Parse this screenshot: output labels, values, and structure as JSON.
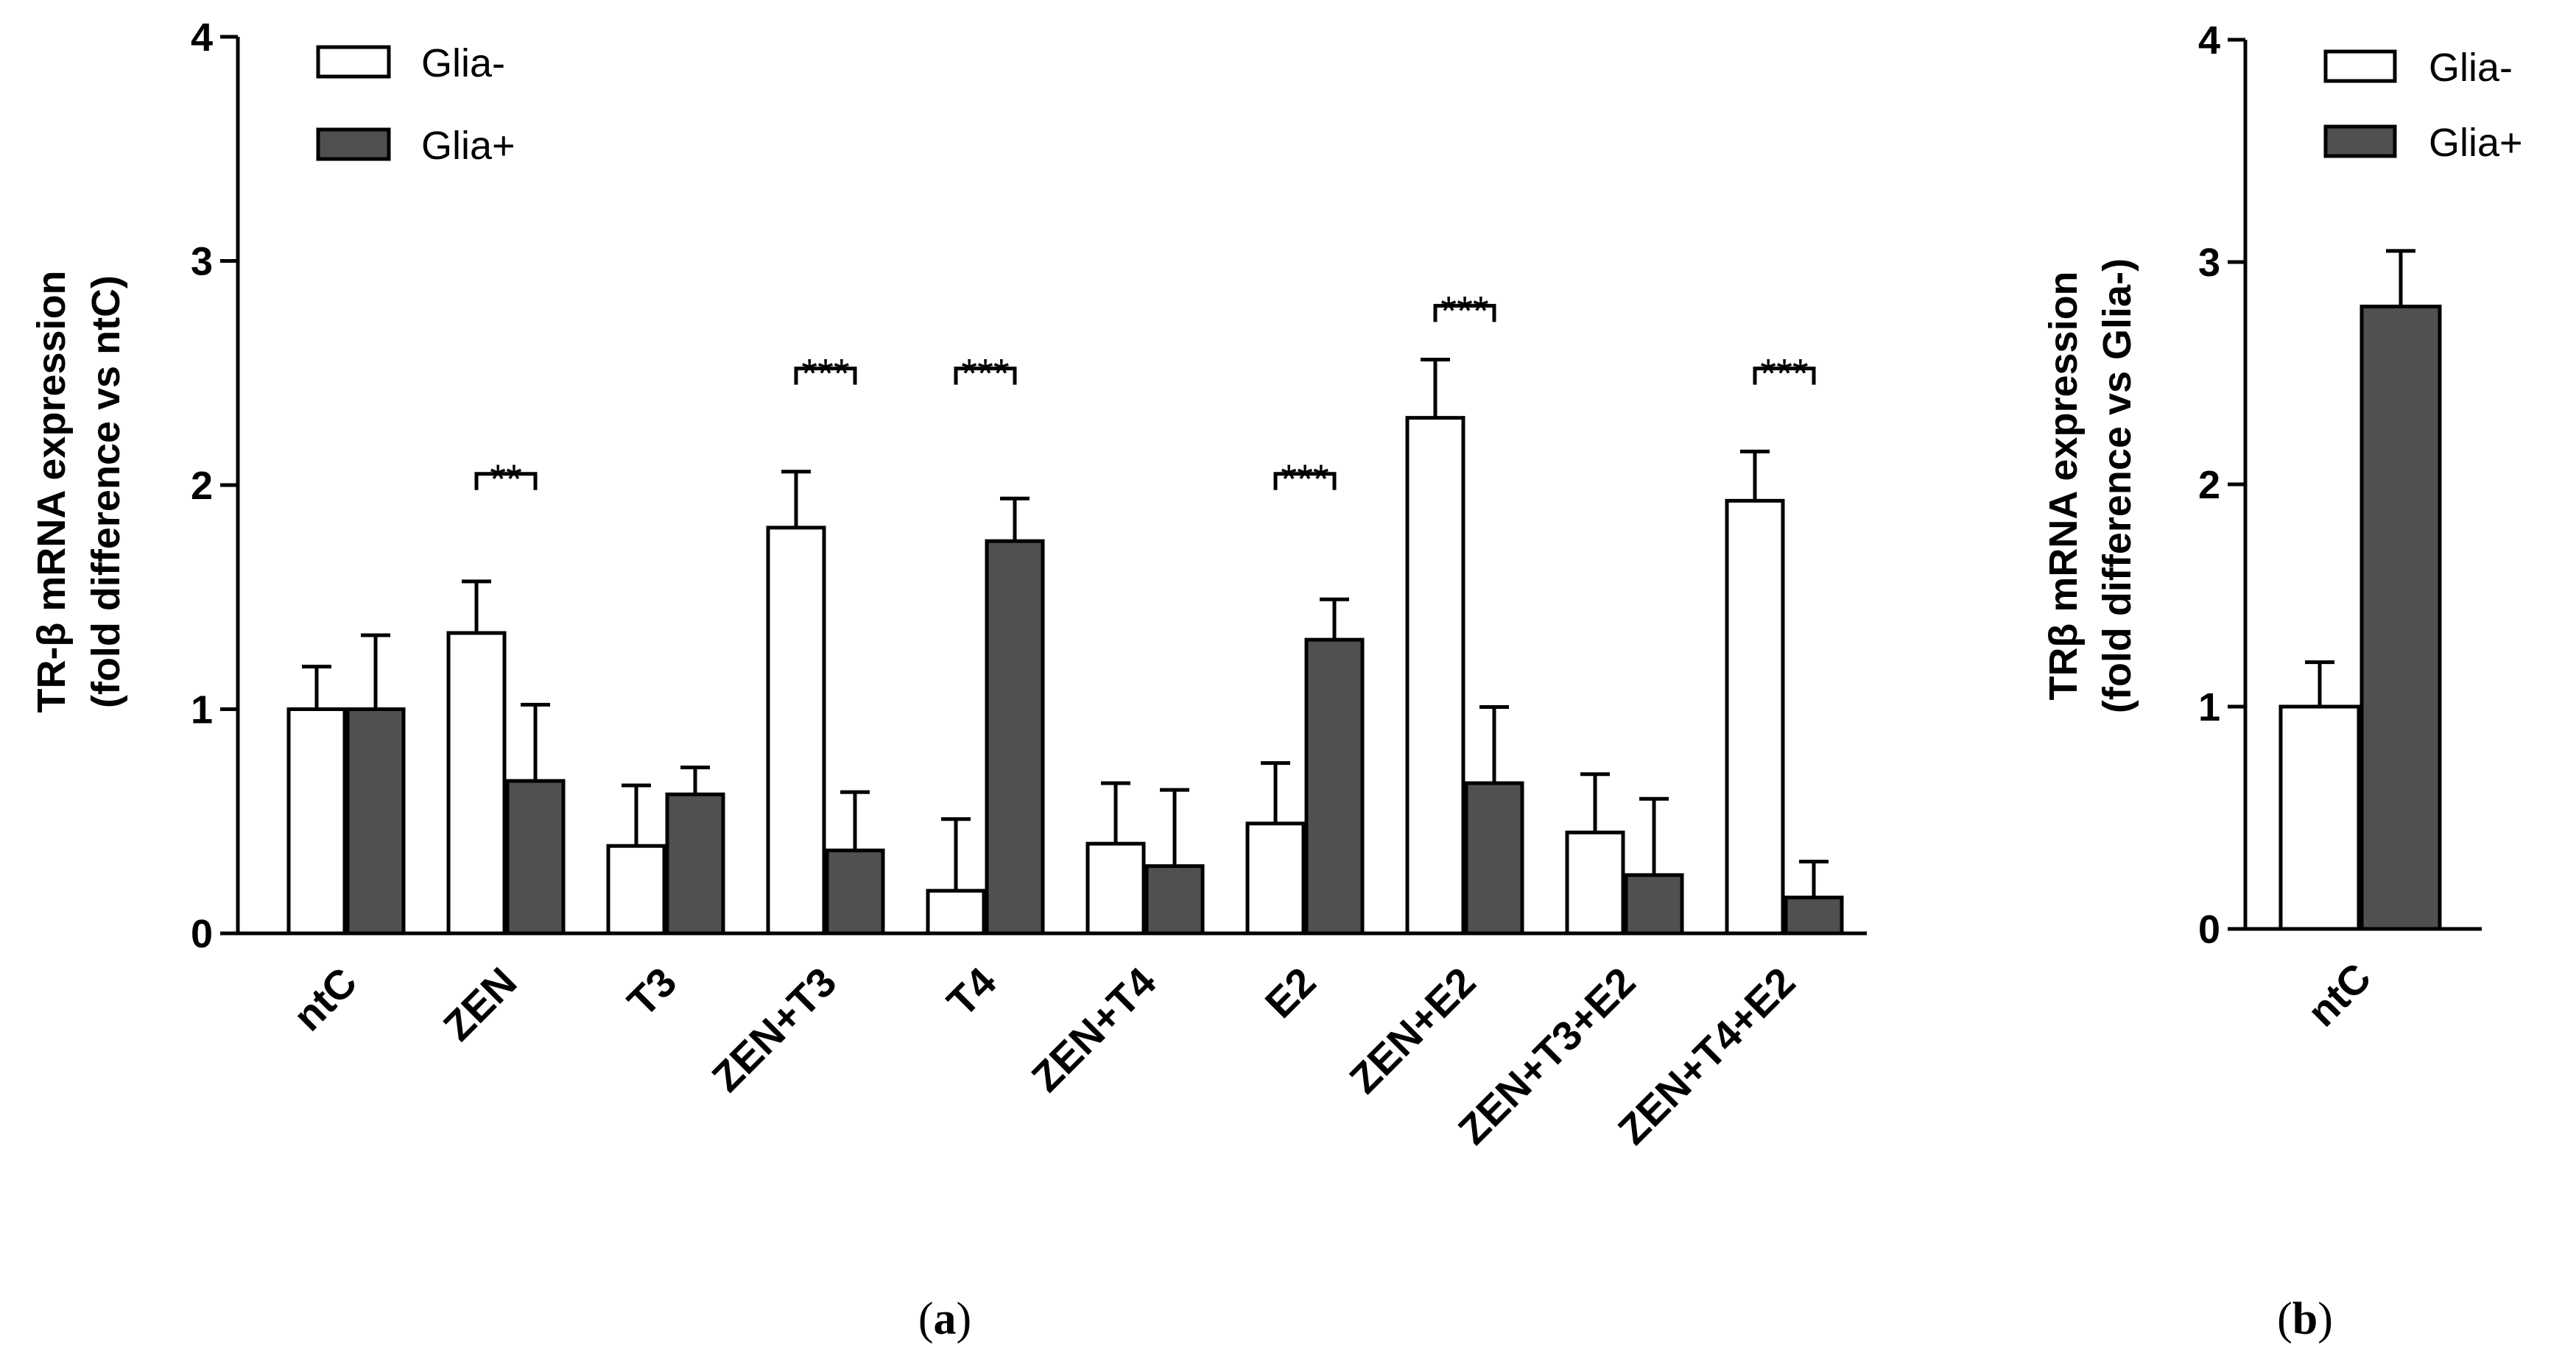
{
  "colors": {
    "glia_minus": "#ffffff",
    "glia_plus": "#505050",
    "stroke": "#000000"
  },
  "chart_data": [
    {
      "panel": "a",
      "type": "bar",
      "ylabel_line1": "TR-β mRNA expression",
      "ylabel_line2": "(fold difference vs ntC)",
      "ylim": [
        0,
        4
      ],
      "yticks": [
        "0",
        "1",
        "2",
        "3",
        "4"
      ],
      "categories": [
        "ntC",
        "ZEN",
        "T3",
        "ZEN+T3",
        "T4",
        "ZEN+T4",
        "E2",
        "ZEN+E2",
        "ZEN+T3+E2",
        "ZEN+T4+E2"
      ],
      "series": [
        {
          "name": "Glia-",
          "values": [
            1.0,
            1.34,
            0.39,
            1.81,
            0.19,
            0.4,
            0.49,
            2.3,
            0.45,
            1.93
          ],
          "errors": [
            0.19,
            0.23,
            0.27,
            0.25,
            0.32,
            0.27,
            0.27,
            0.26,
            0.26,
            0.22
          ]
        },
        {
          "name": "Glia+",
          "values": [
            1.0,
            0.68,
            0.62,
            0.37,
            1.75,
            0.3,
            1.31,
            0.67,
            0.26,
            0.16
          ],
          "errors": [
            0.33,
            0.34,
            0.12,
            0.26,
            0.19,
            0.34,
            0.18,
            0.34,
            0.34,
            0.16
          ]
        }
      ],
      "legend": [
        "Glia-",
        "Glia+"
      ],
      "significance": [
        {
          "category_index": 1,
          "label": "**",
          "level": 2.05
        },
        {
          "category_index": 3,
          "label": "***",
          "level": 2.52
        },
        {
          "category_index": 4,
          "label": "***",
          "level": 2.52
        },
        {
          "category_index": 6,
          "label": "***",
          "level": 2.05
        },
        {
          "category_index": 7,
          "label": "***",
          "level": 2.8
        },
        {
          "category_index": 9,
          "label": "***",
          "level": 2.52
        }
      ],
      "panel_label": "a"
    },
    {
      "panel": "b",
      "type": "bar",
      "ylabel_line1": "TRβ mRNA expression",
      "ylabel_line2": "(fold difference vs Glia-)",
      "ylim": [
        0,
        4
      ],
      "yticks": [
        "0",
        "1",
        "2",
        "3",
        "4"
      ],
      "categories": [
        "ntC"
      ],
      "series": [
        {
          "name": "Glia-",
          "values": [
            1.0
          ],
          "errors": [
            0.2
          ]
        },
        {
          "name": "Glia+",
          "values": [
            2.8
          ],
          "errors": [
            0.25
          ]
        }
      ],
      "legend": [
        "Glia-",
        "Glia+"
      ],
      "panel_label": "b"
    }
  ]
}
